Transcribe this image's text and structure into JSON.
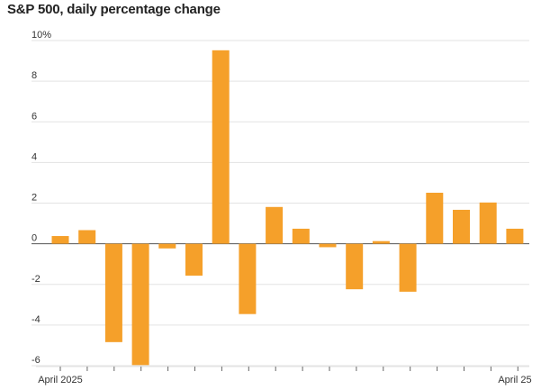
{
  "chart_data": {
    "type": "bar",
    "title": "S&P 500, daily percentage change",
    "xlabel": "",
    "ylabel": "",
    "ylim": [
      -6,
      10
    ],
    "y_ticks": [
      10,
      8,
      6,
      4,
      2,
      0,
      -2,
      -4,
      -6
    ],
    "y_tick_labels": [
      "10%",
      "8",
      "6",
      "4",
      "2",
      "0",
      "-2",
      "-4",
      "-6"
    ],
    "x_tick_labels": [
      "April 2025",
      "April 25"
    ],
    "grid": true,
    "bar_color": "#f5a02a",
    "values": [
      0.38,
      0.67,
      -4.84,
      -5.97,
      -0.23,
      -1.57,
      9.52,
      -3.46,
      1.81,
      0.74,
      -0.17,
      -2.24,
      0.13,
      -2.36,
      2.51,
      1.67,
      2.03,
      0.74
    ]
  }
}
